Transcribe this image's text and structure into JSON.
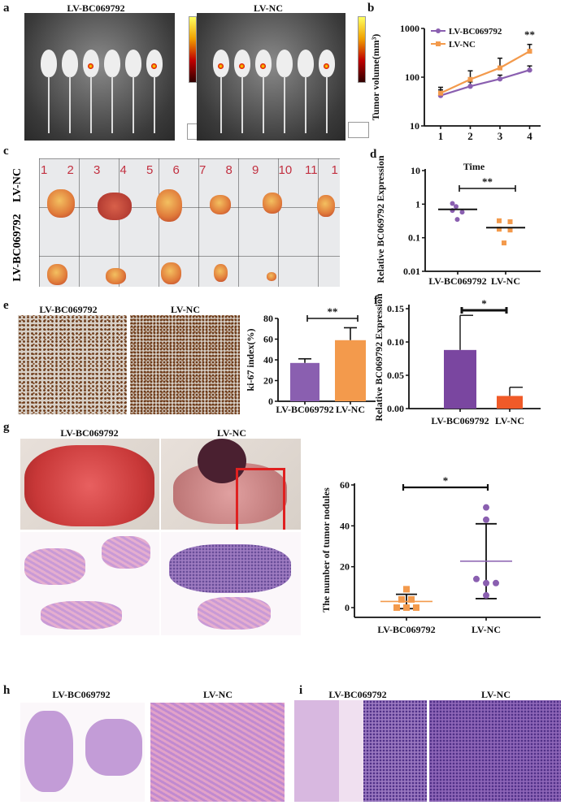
{
  "panels": {
    "a": {
      "label": "a",
      "left_title": "LV-BC069792",
      "right_title": "LV-NC"
    },
    "b": {
      "label": "b"
    },
    "c": {
      "label": "c",
      "row_top": "LV-NC",
      "row_bottom": "LV-BC069792",
      "ruler_numbers": [
        "1",
        "2",
        "3",
        "4",
        "5",
        "6",
        "7",
        "8",
        "9",
        "10",
        "11",
        "1"
      ]
    },
    "d": {
      "label": "d"
    },
    "e": {
      "label": "e",
      "left_title": "LV-BC069792",
      "right_title": "LV-NC"
    },
    "f": {
      "label": "f"
    },
    "g": {
      "label": "g",
      "left_title": "LV-BC069792",
      "right_title": "LV-NC"
    },
    "h": {
      "label": "h",
      "left_title": "LV-BC069792",
      "right_title": "LV-NC"
    },
    "i": {
      "label": "i",
      "left_title": "LV-BC069792",
      "right_title": "LV-NC"
    }
  },
  "colors": {
    "purple": "#8a5fb0",
    "orange": "#f39a4c",
    "orange_red": "#f05a28",
    "dark_purple": "#7a46a0"
  },
  "chart_data": [
    {
      "id": "b",
      "type": "line",
      "ylabel": "Tumor volume(mm³)",
      "xlabel": "",
      "yscale": "log",
      "ylim": [
        10,
        1000
      ],
      "yticks": [
        "10",
        "100",
        "1000"
      ],
      "x": [
        "1",
        "2",
        "3",
        "4"
      ],
      "legend": "top-left",
      "annotation": "**",
      "series": [
        {
          "name": "LV-BC069792",
          "values": [
            42,
            65,
            92,
            140
          ],
          "err_upper": [
            55,
            80,
            110,
            170
          ]
        },
        {
          "name": "LV-NC",
          "values": [
            47,
            90,
            155,
            340
          ],
          "err_upper": [
            62,
            135,
            245,
            470
          ]
        }
      ]
    },
    {
      "id": "d",
      "type": "scatter",
      "title": "Time",
      "ylabel": "Relative BC069792 Expression",
      "yscale": "log",
      "ylim": [
        0.01,
        10
      ],
      "yticks": [
        "0.01",
        "0.1",
        "1",
        "10"
      ],
      "categories": [
        "LV-BC069792",
        "LV-NC"
      ],
      "annotation": "**",
      "series": [
        {
          "name": "LV-BC069792",
          "points": [
            1.05,
            0.85,
            0.65,
            0.58,
            0.35
          ],
          "mean": 0.7
        },
        {
          "name": "LV-NC",
          "points": [
            0.32,
            0.3,
            0.18,
            0.17,
            0.07
          ],
          "mean": 0.2
        }
      ]
    },
    {
      "id": "e",
      "type": "bar",
      "ylabel": "ki-67 index(%)",
      "ylim": [
        0,
        80
      ],
      "yticks": [
        "0",
        "20",
        "40",
        "60",
        "80"
      ],
      "categories": [
        "LV-BC069792",
        "LV-NC"
      ],
      "values": [
        37,
        59
      ],
      "errors": [
        4,
        12
      ],
      "annotation": "**"
    },
    {
      "id": "f",
      "type": "bar",
      "ylabel": "Relative BC069792 Expression",
      "ylim": [
        0,
        0.15
      ],
      "yticks": [
        "0.00",
        "0.05",
        "0.10",
        "0.15"
      ],
      "categories": [
        "LV-BC069792",
        "LV-NC"
      ],
      "values": [
        0.088,
        0.019
      ],
      "errors": [
        0.052,
        0.013
      ],
      "annotation": "*"
    },
    {
      "id": "g",
      "type": "scatter",
      "ylabel": "The number of tumor nodules",
      "ylim": [
        0,
        60
      ],
      "yticks": [
        "0",
        "20",
        "40",
        "60"
      ],
      "categories": [
        "LV-BC069792",
        "LV-NC"
      ],
      "annotation": "*",
      "series": [
        {
          "name": "LV-BC069792",
          "points": [
            9,
            4,
            4,
            0,
            0,
            0
          ],
          "mean": 3,
          "sd": 3.5
        },
        {
          "name": "LV-NC",
          "points": [
            49,
            43,
            14,
            12,
            12,
            6
          ],
          "mean": 22.7,
          "sd": 18.3
        }
      ]
    }
  ]
}
